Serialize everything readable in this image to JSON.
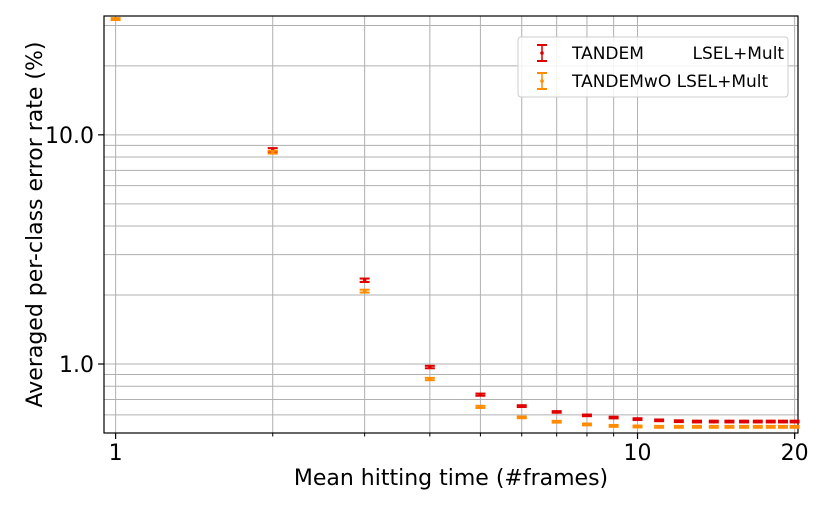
{
  "chart_data": {
    "type": "scatter",
    "xscale": "log",
    "yscale": "log",
    "xlim": [
      0.95,
      20.3
    ],
    "ylim": [
      0.5,
      33
    ],
    "xlabel": "Mean hitting time (#frames)",
    "ylabel": "Averaged per-class error rate (%)",
    "xticks": [
      {
        "value": 1,
        "label": "1"
      },
      {
        "value": 10,
        "label": "10"
      },
      {
        "value": 20,
        "label": "20"
      }
    ],
    "yticks": [
      {
        "value": 1,
        "label": "1.0"
      },
      {
        "value": 10,
        "label": "10.0"
      }
    ],
    "grid": true,
    "legend_position": "top-right",
    "series": [
      {
        "name": "TANDEM         LSEL+Mult",
        "color": "#e00000",
        "x": [
          2,
          3,
          4,
          5,
          6,
          7,
          8,
          9,
          10,
          11,
          12,
          13,
          14,
          15,
          16,
          17,
          18,
          19,
          20
        ],
        "y": [
          8.6,
          2.32,
          0.97,
          0.735,
          0.655,
          0.618,
          0.597,
          0.584,
          0.575,
          0.568,
          0.563,
          0.561,
          0.561,
          0.561,
          0.561,
          0.561,
          0.561,
          0.561,
          0.561
        ],
        "err": [
          0.15,
          0.04,
          0.012,
          0.008,
          0.006,
          0.005,
          0.005,
          0.005,
          0.005,
          0.005,
          0.005,
          0.005,
          0.005,
          0.005,
          0.005,
          0.005,
          0.005,
          0.005,
          0.005
        ]
      },
      {
        "name": "TANDEMwO LSEL+Mult",
        "color": "#ff8c00",
        "x": [
          1,
          2,
          3,
          4,
          5,
          6,
          7,
          8,
          9,
          10,
          11,
          12,
          13,
          14,
          15,
          16,
          17,
          18,
          19,
          20
        ],
        "y": [
          32.0,
          8.4,
          2.08,
          0.86,
          0.65,
          0.585,
          0.56,
          0.545,
          0.537,
          0.534,
          0.532,
          0.532,
          0.532,
          0.532,
          0.532,
          0.532,
          0.532,
          0.532,
          0.532,
          0.532
        ],
        "err": [
          0.3,
          0.12,
          0.03,
          0.01,
          0.007,
          0.005,
          0.005,
          0.005,
          0.005,
          0.005,
          0.005,
          0.005,
          0.005,
          0.005,
          0.005,
          0.005,
          0.005,
          0.005,
          0.005,
          0.005
        ]
      }
    ]
  }
}
